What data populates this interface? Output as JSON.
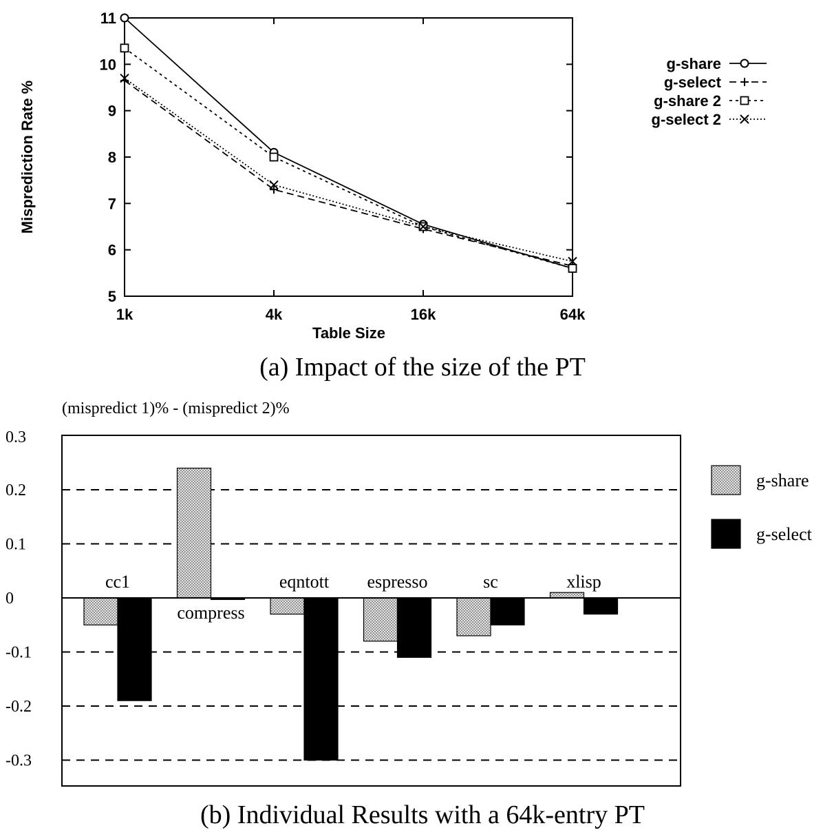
{
  "charts": [
    {
      "caption": "(a) Impact of the size of the PT",
      "chart_data": {
        "type": "line",
        "title": "",
        "xlabel": "Table Size",
        "ylabel": "Misprediction Rate %",
        "categories": [
          "1k",
          "4k",
          "16k",
          "64k"
        ],
        "ylim": [
          5,
          11
        ],
        "yticks": [
          "5",
          "6",
          "7",
          "8",
          "9",
          "10",
          "11"
        ],
        "grid": false,
        "legend_position": "top-right, outside plot",
        "series": [
          {
            "name": "g-share",
            "values": [
              11.0,
              8.1,
              6.55,
              5.6
            ],
            "marker": "diamond",
            "dash": "solid"
          },
          {
            "name": "g-select",
            "values": [
              9.65,
              7.3,
              6.45,
              5.65
            ],
            "marker": "plus",
            "dash": "dashed"
          },
          {
            "name": "g-share 2",
            "values": [
              10.35,
              8.0,
              6.5,
              5.6
            ],
            "marker": "square",
            "dash": "dotted"
          },
          {
            "name": "g-select 2",
            "values": [
              9.7,
              7.4,
              6.5,
              5.75
            ],
            "marker": "cross",
            "dash": "densely-dotted"
          }
        ]
      }
    },
    {
      "caption": "(b) Individual Results with a 64k-entry PT",
      "chart_data": {
        "type": "bar",
        "title": "",
        "ylabel": "(mispredict 1)% - (mispredict 2)%",
        "xlabel": "",
        "categories": [
          "cc1",
          "compress",
          "eqntott",
          "espresso",
          "sc",
          "xlisp"
        ],
        "ylim": [
          -0.35,
          0.3
        ],
        "yticks": [
          "0.3",
          "0.2",
          "0.1",
          "0",
          "-0.1",
          "-0.2",
          "-0.3"
        ],
        "grid": "dashed horizontal",
        "legend_position": "right, outside plot",
        "series": [
          {
            "name": "g-share",
            "values": [
              -0.05,
              0.24,
              -0.03,
              -0.08,
              -0.07,
              0.01
            ],
            "color": "#c4c4c4"
          },
          {
            "name": "g-select",
            "values": [
              -0.19,
              -0.003,
              -0.3,
              -0.11,
              -0.05,
              -0.03
            ],
            "color": "#000000"
          }
        ]
      }
    }
  ]
}
